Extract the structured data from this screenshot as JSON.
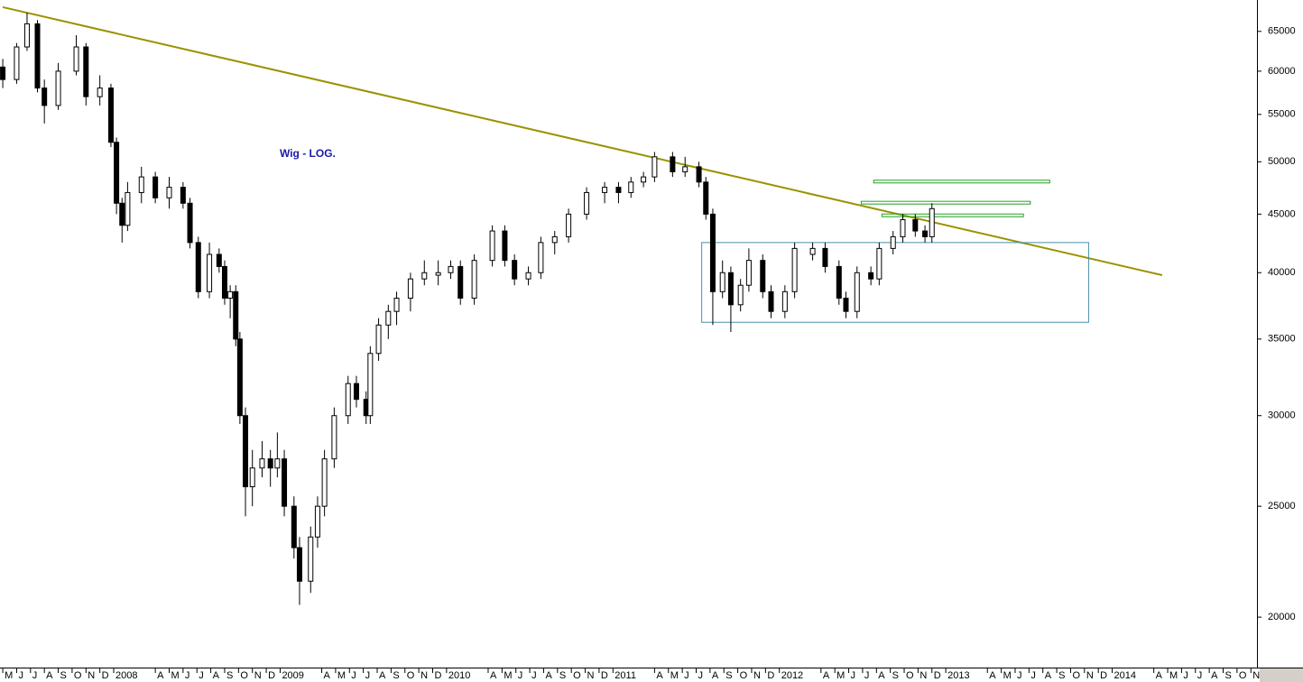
{
  "chart_data": {
    "type": "candlestick",
    "annotation": "Wig - LOG.",
    "log_scale": true,
    "xlim": [
      -0.2,
      90.44
    ],
    "ylim": [
      18070,
      69240
    ],
    "yticks": [
      20000,
      25000,
      30000,
      35000,
      40000,
      45000,
      50000,
      55000,
      60000,
      65000
    ],
    "xticks": [
      {
        "value": 0,
        "label": "M"
      },
      {
        "value": 1,
        "label": "J"
      },
      {
        "value": 2,
        "label": "J"
      },
      {
        "value": 3,
        "label": "A"
      },
      {
        "value": 4,
        "label": "S"
      },
      {
        "value": 5,
        "label": "O"
      },
      {
        "value": 6,
        "label": "N"
      },
      {
        "value": 7,
        "label": "D"
      },
      {
        "value": 8,
        "label": "2008"
      },
      {
        "value": 11,
        "label": "A"
      },
      {
        "value": 12,
        "label": "M"
      },
      {
        "value": 13,
        "label": "J"
      },
      {
        "value": 14,
        "label": "J"
      },
      {
        "value": 15,
        "label": "A"
      },
      {
        "value": 16,
        "label": "S"
      },
      {
        "value": 17,
        "label": "O"
      },
      {
        "value": 18,
        "label": "N"
      },
      {
        "value": 19,
        "label": "D"
      },
      {
        "value": 20,
        "label": "2009"
      },
      {
        "value": 23,
        "label": "A"
      },
      {
        "value": 24,
        "label": "M"
      },
      {
        "value": 25,
        "label": "J"
      },
      {
        "value": 26,
        "label": "J"
      },
      {
        "value": 27,
        "label": "A"
      },
      {
        "value": 28,
        "label": "S"
      },
      {
        "value": 29,
        "label": "O"
      },
      {
        "value": 30,
        "label": "N"
      },
      {
        "value": 31,
        "label": "D"
      },
      {
        "value": 32,
        "label": "2010"
      },
      {
        "value": 35,
        "label": "A"
      },
      {
        "value": 36,
        "label": "M"
      },
      {
        "value": 37,
        "label": "J"
      },
      {
        "value": 38,
        "label": "J"
      },
      {
        "value": 39,
        "label": "A"
      },
      {
        "value": 40,
        "label": "S"
      },
      {
        "value": 41,
        "label": "O"
      },
      {
        "value": 42,
        "label": "N"
      },
      {
        "value": 43,
        "label": "D"
      },
      {
        "value": 44,
        "label": "2011"
      },
      {
        "value": 47,
        "label": "A"
      },
      {
        "value": 48,
        "label": "M"
      },
      {
        "value": 49,
        "label": "J"
      },
      {
        "value": 50,
        "label": "J"
      },
      {
        "value": 51,
        "label": "A"
      },
      {
        "value": 52,
        "label": "S"
      },
      {
        "value": 53,
        "label": "O"
      },
      {
        "value": 54,
        "label": "N"
      },
      {
        "value": 55,
        "label": "D"
      },
      {
        "value": 56,
        "label": "2012"
      },
      {
        "value": 59,
        "label": "A"
      },
      {
        "value": 60,
        "label": "M"
      },
      {
        "value": 61,
        "label": "J"
      },
      {
        "value": 62,
        "label": "J"
      },
      {
        "value": 63,
        "label": "A"
      },
      {
        "value": 64,
        "label": "S"
      },
      {
        "value": 65,
        "label": "O"
      },
      {
        "value": 66,
        "label": "N"
      },
      {
        "value": 67,
        "label": "D"
      },
      {
        "value": 68,
        "label": "2013"
      },
      {
        "value": 71,
        "label": "A"
      },
      {
        "value": 72,
        "label": "M"
      },
      {
        "value": 73,
        "label": "J"
      },
      {
        "value": 74,
        "label": "J"
      },
      {
        "value": 75,
        "label": "A"
      },
      {
        "value": 76,
        "label": "S"
      },
      {
        "value": 77,
        "label": "O"
      },
      {
        "value": 78,
        "label": "N"
      },
      {
        "value": 79,
        "label": "D"
      },
      {
        "value": 80,
        "label": "2014"
      },
      {
        "value": 83,
        "label": "A"
      },
      {
        "value": 84,
        "label": "M"
      },
      {
        "value": 85,
        "label": "J"
      },
      {
        "value": 86,
        "label": "J"
      },
      {
        "value": 87,
        "label": "A"
      },
      {
        "value": 88,
        "label": "S"
      },
      {
        "value": 89,
        "label": "O"
      },
      {
        "value": 90,
        "label": "N"
      }
    ],
    "up_color": "#ffffff",
    "down_color": "#000000",
    "x": [
      0,
      1,
      1.75,
      2.5,
      3,
      4,
      5.3,
      6,
      7,
      7.8,
      8.2,
      8.6,
      9,
      10,
      11,
      12,
      13,
      13.5,
      14.1,
      14.9,
      15.6,
      16,
      16.4,
      16.8,
      17.1,
      17.5,
      18,
      18.7,
      19.3,
      19.8,
      20.3,
      21,
      21.4,
      22.2,
      22.7,
      23.2,
      23.9,
      24.9,
      25.5,
      26.2,
      26.5,
      27.1,
      27.8,
      28.4,
      29.4,
      30.4,
      31.4,
      32.3,
      33,
      34,
      35.3,
      36.2,
      36.9,
      37.9,
      38.8,
      39.8,
      40.8,
      42.1,
      43.4,
      44.4,
      45.3,
      46.2,
      47,
      48.3,
      49.2,
      50.2,
      50.7,
      51.2,
      51.9,
      52.5,
      53.2,
      53.8,
      54.8,
      55.4,
      56.4,
      57.1,
      58.4,
      59.3,
      60.3,
      60.8,
      61.6,
      62.6,
      63.2,
      64.2,
      64.9,
      65.8,
      66.5,
      67
    ],
    "open": [
      60500,
      59000,
      63000,
      66000,
      58000,
      56000,
      60000,
      63000,
      57000,
      58000,
      52000,
      46000,
      44000,
      47000,
      48500,
      46500,
      47500,
      46000,
      42500,
      38500,
      41500,
      40500,
      38000,
      38500,
      35000,
      30000,
      26000,
      27000,
      27500,
      27000,
      27500,
      25000,
      23000,
      21500,
      23500,
      25000,
      27500,
      30000,
      32000,
      31000,
      30000,
      34000,
      36000,
      37000,
      38000,
      39500,
      39800,
      40000,
      40500,
      38000,
      41000,
      43500,
      41000,
      39500,
      40000,
      42500,
      43000,
      45000,
      47000,
      47500,
      47000,
      48000,
      48500,
      50500,
      49000,
      49500,
      48000,
      45000,
      38500,
      40000,
      37500,
      39000,
      41000,
      38500,
      37000,
      38500,
      41500,
      42000,
      40500,
      38000,
      37000,
      40000,
      39500,
      42000,
      43000,
      44500,
      43500,
      43000
    ],
    "high": [
      61500,
      63500,
      67500,
      66500,
      59000,
      61000,
      64500,
      63500,
      59500,
      58500,
      52500,
      46500,
      48000,
      49500,
      49000,
      48500,
      48000,
      46500,
      43000,
      42500,
      42000,
      41000,
      39000,
      39000,
      35500,
      30500,
      28000,
      28500,
      28000,
      29000,
      28000,
      25500,
      23500,
      24000,
      25500,
      28000,
      30500,
      32500,
      32500,
      31500,
      34500,
      36500,
      37500,
      38500,
      40000,
      41000,
      41000,
      41000,
      41000,
      41500,
      44000,
      44000,
      41500,
      40500,
      43000,
      43500,
      45500,
      47500,
      48000,
      48000,
      48500,
      49000,
      51000,
      51000,
      50500,
      50000,
      48500,
      45500,
      41000,
      40500,
      39500,
      42000,
      41500,
      39000,
      39000,
      42500,
      42500,
      42500,
      41000,
      38500,
      40500,
      40500,
      42500,
      43500,
      45000,
      45000,
      44000,
      46000
    ],
    "low": [
      58000,
      58500,
      62500,
      57500,
      54000,
      55500,
      59500,
      56000,
      56000,
      51500,
      45000,
      42500,
      43500,
      46000,
      46000,
      45500,
      45500,
      42000,
      38000,
      38000,
      40000,
      37500,
      36500,
      34500,
      29500,
      24500,
      25000,
      26500,
      26000,
      26500,
      24500,
      22500,
      20500,
      21000,
      23000,
      24500,
      27000,
      29500,
      30500,
      29500,
      29500,
      33500,
      35000,
      36000,
      37000,
      39000,
      39000,
      39500,
      37500,
      37500,
      40500,
      40500,
      39000,
      39000,
      39500,
      41500,
      42500,
      44500,
      46000,
      46000,
      46500,
      47500,
      48000,
      48500,
      48500,
      47500,
      44500,
      36000,
      38000,
      35500,
      37000,
      38500,
      38000,
      36500,
      36500,
      38000,
      41000,
      40000,
      37500,
      36500,
      36500,
      39000,
      39000,
      41500,
      42500,
      43000,
      42500,
      42500
    ],
    "close": [
      59000,
      63000,
      66000,
      58000,
      56000,
      60000,
      63000,
      57000,
      58000,
      52000,
      46000,
      44000,
      47000,
      48500,
      46500,
      47500,
      46000,
      42500,
      38500,
      41500,
      40500,
      38000,
      38500,
      35000,
      30000,
      26000,
      27000,
      27500,
      27000,
      27500,
      25000,
      23000,
      21500,
      23500,
      25000,
      27500,
      30000,
      32000,
      31000,
      30000,
      34000,
      36000,
      37000,
      38000,
      39500,
      40000,
      40000,
      40500,
      38000,
      41000,
      43500,
      41000,
      39500,
      40000,
      42500,
      43000,
      45000,
      47000,
      47500,
      47000,
      48000,
      48500,
      50500,
      49000,
      49500,
      48000,
      45000,
      38500,
      40000,
      37500,
      39000,
      41000,
      38500,
      37000,
      38500,
      42000,
      42000,
      40500,
      38000,
      37000,
      40000,
      39500,
      42000,
      43000,
      44500,
      43500,
      43000,
      45500
    ],
    "trendline": {
      "color": "#9a9200",
      "x": [
        0,
        83.6
      ],
      "y": [
        68250,
        39800
      ]
    },
    "range_box": {
      "color": "#4a8fab",
      "x": [
        50.4,
        78.3
      ],
      "y": [
        36200,
        42500
      ]
    },
    "levels": [
      {
        "color": "#22a022",
        "x": [
          62.8,
          75.5
        ],
        "y": 48050
      },
      {
        "color": "#22a022",
        "x": [
          61.9,
          74.1
        ],
        "y": 46050
      },
      {
        "color": "#22a022",
        "x": [
          63.4,
          73.6
        ],
        "y": 44890
      }
    ]
  }
}
